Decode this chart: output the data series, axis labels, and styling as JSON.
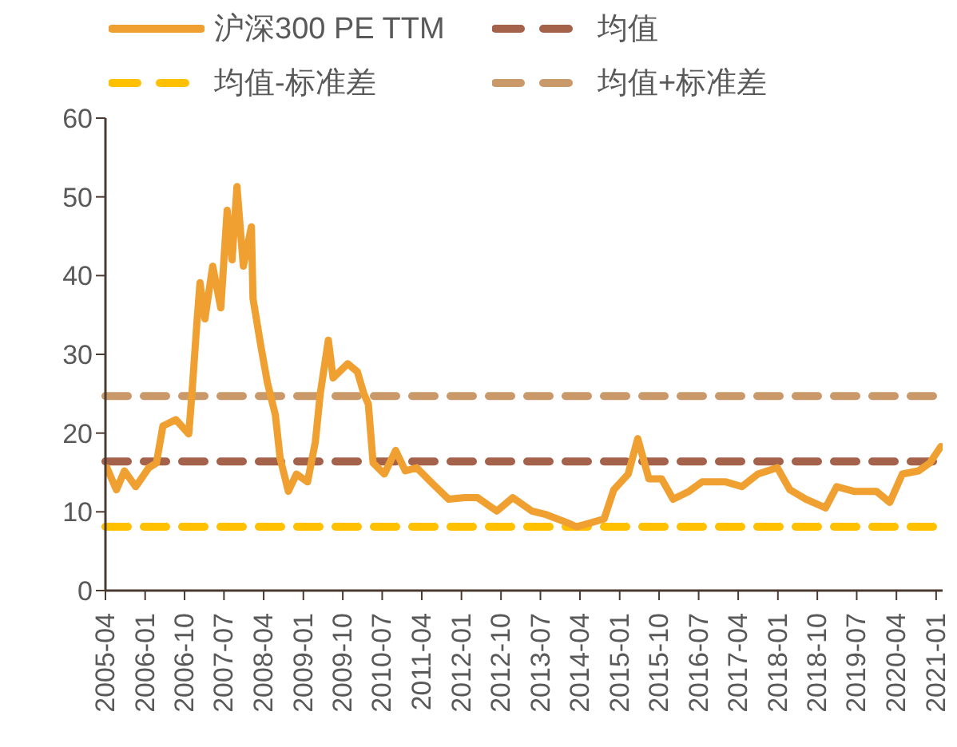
{
  "chart_data": {
    "type": "line",
    "x": [
      "2005-04-11",
      "2005-06-16",
      "2005-08-11",
      "2005-10-28",
      "2006-01-26",
      "2006-03-20",
      "2006-05-04",
      "2006-08-02",
      "2006-10-30",
      "2006-11-21",
      "2006-12-25",
      "2007-01-16",
      "2007-02-19",
      "2007-04-14",
      "2007-06-09",
      "2007-07-23",
      "2007-08-26",
      "2007-09-29",
      "2007-11-12",
      "2008-01-07",
      "2008-01-18",
      "2008-03-13",
      "2008-04-27",
      "2008-06-21",
      "2008-07-24",
      "2008-09-19",
      "2008-11-14",
      "2009-01-30",
      "2009-03-25",
      "2009-04-28",
      "2009-06-23",
      "2009-07-26",
      "2009-11-04",
      "2010-01-10",
      "2010-02-24",
      "2010-03-27",
      "2010-04-29",
      "2010-07-16",
      "2010-10-02",
      "2010-12-08",
      "2011-02-25",
      "2011-06-14",
      "2011-10-04",
      "2012-01-23",
      "2012-04-21",
      "2012-09-02",
      "2012-12-22",
      "2013-05-03",
      "2013-08-01",
      "2013-12-22",
      "2014-03-09",
      "2014-09-15",
      "2014-11-21",
      "2015-03-01",
      "2015-05-06",
      "2015-07-22",
      "2015-10-18",
      "2016-01-06",
      "2016-04-25",
      "2016-07-24",
      "2017-01-06",
      "2017-04-27",
      "2017-08-15",
      "2017-12-28",
      "2018-03-25",
      "2018-07-15",
      "2018-11-27",
      "2019-02-12",
      "2019-06-12",
      "2019-11-15",
      "2020-02-15",
      "2020-05-12",
      "2020-09-01",
      "2020-11-18",
      "2021-02-03"
    ],
    "series": [
      {
        "name": "沪深300 PE TTM",
        "color": "#f0a030",
        "values": [
          15.6,
          12.8,
          15.2,
          13.2,
          15.6,
          16.2,
          20.9,
          21.7,
          19.9,
          25,
          33.9,
          39.1,
          34.5,
          41.2,
          35.9,
          48.3,
          42,
          51.3,
          41.2,
          46.2,
          37.1,
          31,
          26.4,
          22.3,
          16.8,
          12.6,
          14.8,
          13.8,
          18.9,
          25,
          31.8,
          27,
          28.8,
          27.8,
          25,
          23.7,
          16.2,
          14.8,
          17.8,
          15.2,
          15.6,
          13.6,
          11.6,
          11.8,
          11.8,
          10.1,
          11.8,
          10.1,
          9.7,
          8.7,
          8.1,
          9.1,
          12.8,
          14.8,
          19.3,
          14.2,
          14.2,
          11.6,
          12.6,
          13.8,
          13.8,
          13.2,
          14.8,
          15.6,
          12.8,
          11.6,
          10.5,
          13.2,
          12.6,
          12.6,
          11.2,
          14.8,
          15.2,
          16.2,
          18.3
        ]
      }
    ],
    "ref_lines": [
      {
        "axis": "y",
        "value": 16.4,
        "label": "均值",
        "color": "#a5624a",
        "line_style": "dashed"
      },
      {
        "axis": "y",
        "value": 8.1,
        "label": "均值-标准差",
        "color": "#ffc000",
        "line_style": "dashed"
      },
      {
        "axis": "y",
        "value": 24.7,
        "label": "均值+标准差",
        "color": "#c9996a",
        "line_style": "dashed"
      }
    ],
    "xlim": [
      "2005-04-01",
      "2021-02-15"
    ],
    "xticks": [
      "2005-04",
      "2006-01",
      "2006-10",
      "2007-07",
      "2008-04",
      "2009-01",
      "2009-10",
      "2010-07",
      "2011-04",
      "2012-01",
      "2012-10",
      "2013-07",
      "2014-04",
      "2015-01",
      "2015-10",
      "2016-07",
      "2017-04",
      "2018-01",
      "2018-10",
      "2019-07",
      "2020-04",
      "2021-01"
    ],
    "ylim": [
      0,
      60
    ],
    "yticks": [
      0,
      10,
      20,
      30,
      40,
      50,
      60
    ],
    "grid": false,
    "legend": "top",
    "line_style": "solid",
    "marker": "none"
  }
}
